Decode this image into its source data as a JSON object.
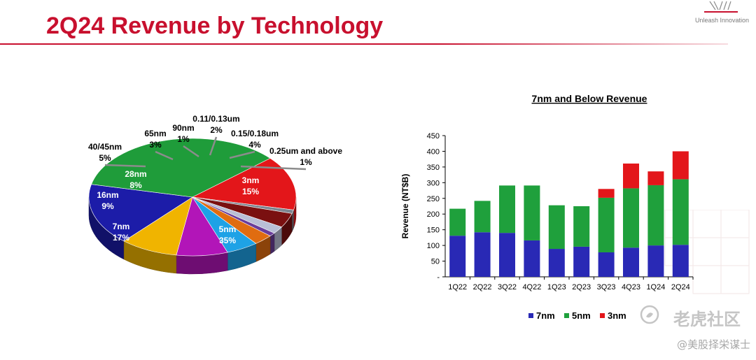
{
  "slide": {
    "title": "2Q24 Revenue by Technology",
    "brand_tag": "Unleash Innovation",
    "watermark": "老虎社区",
    "watermark_sub": "@美股择栄谋士"
  },
  "chart_data": [
    {
      "type": "pie",
      "title": "",
      "slices": [
        {
          "label": "7nm",
          "value": 17,
          "display": "17%",
          "color": "#1c1ca8"
        },
        {
          "label": "5nm",
          "value": 35,
          "display": "35%",
          "color": "#1f9c3a"
        },
        {
          "label": "3nm",
          "value": 15,
          "display": "15%",
          "color": "#e3161a"
        },
        {
          "label": "0.25um and above",
          "value": 1,
          "display": "1%",
          "color": "#7d8590"
        },
        {
          "label": "0.15/0.18um",
          "value": 4,
          "display": "4%",
          "color": "#7a1010"
        },
        {
          "label": "0.11/0.13um",
          "value": 2,
          "display": "2%",
          "color": "#b9bfd6"
        },
        {
          "label": "90nm",
          "value": 1,
          "display": "1%",
          "color": "#6a3d9a"
        },
        {
          "label": "65nm",
          "value": 3,
          "display": "3%",
          "color": "#e06c10"
        },
        {
          "label": "40/45nm",
          "value": 5,
          "display": "5%",
          "color": "#1ea2e6"
        },
        {
          "label": "28nm",
          "value": 8,
          "display": "8%",
          "color": "#b215b8"
        },
        {
          "label": "16nm",
          "value": 9,
          "display": "9%",
          "color": "#f0b400"
        }
      ]
    },
    {
      "type": "bar",
      "stacked": true,
      "title": "7nm and Below Revenue",
      "xlabel": "",
      "ylabel": "Revenue (NT$B)",
      "ylim": [
        0,
        450
      ],
      "yticks": [
        0,
        50,
        100,
        150,
        200,
        250,
        300,
        350,
        400,
        450
      ],
      "ytick_labels": [
        "-",
        "50",
        "100",
        "150",
        "200",
        "250",
        "300",
        "350",
        "400",
        "450"
      ],
      "grid": false,
      "legend": "bottom",
      "categories": [
        "1Q22",
        "2Q22",
        "3Q22",
        "4Q22",
        "1Q23",
        "2Q23",
        "3Q23",
        "4Q23",
        "1Q24",
        "2Q24"
      ],
      "series": [
        {
          "name": "7nm",
          "color": "#2929b5",
          "values": [
            131,
            142,
            140,
            116,
            89,
            96,
            78,
            93,
            100,
            102
          ]
        },
        {
          "name": "5nm",
          "color": "#1fa03c",
          "values": [
            86,
            100,
            151,
            175,
            139,
            129,
            174,
            189,
            192,
            209
          ]
        },
        {
          "name": "3nm",
          "color": "#e3161a",
          "values": [
            0,
            0,
            0,
            0,
            0,
            0,
            28,
            79,
            44,
            89
          ]
        }
      ]
    }
  ]
}
